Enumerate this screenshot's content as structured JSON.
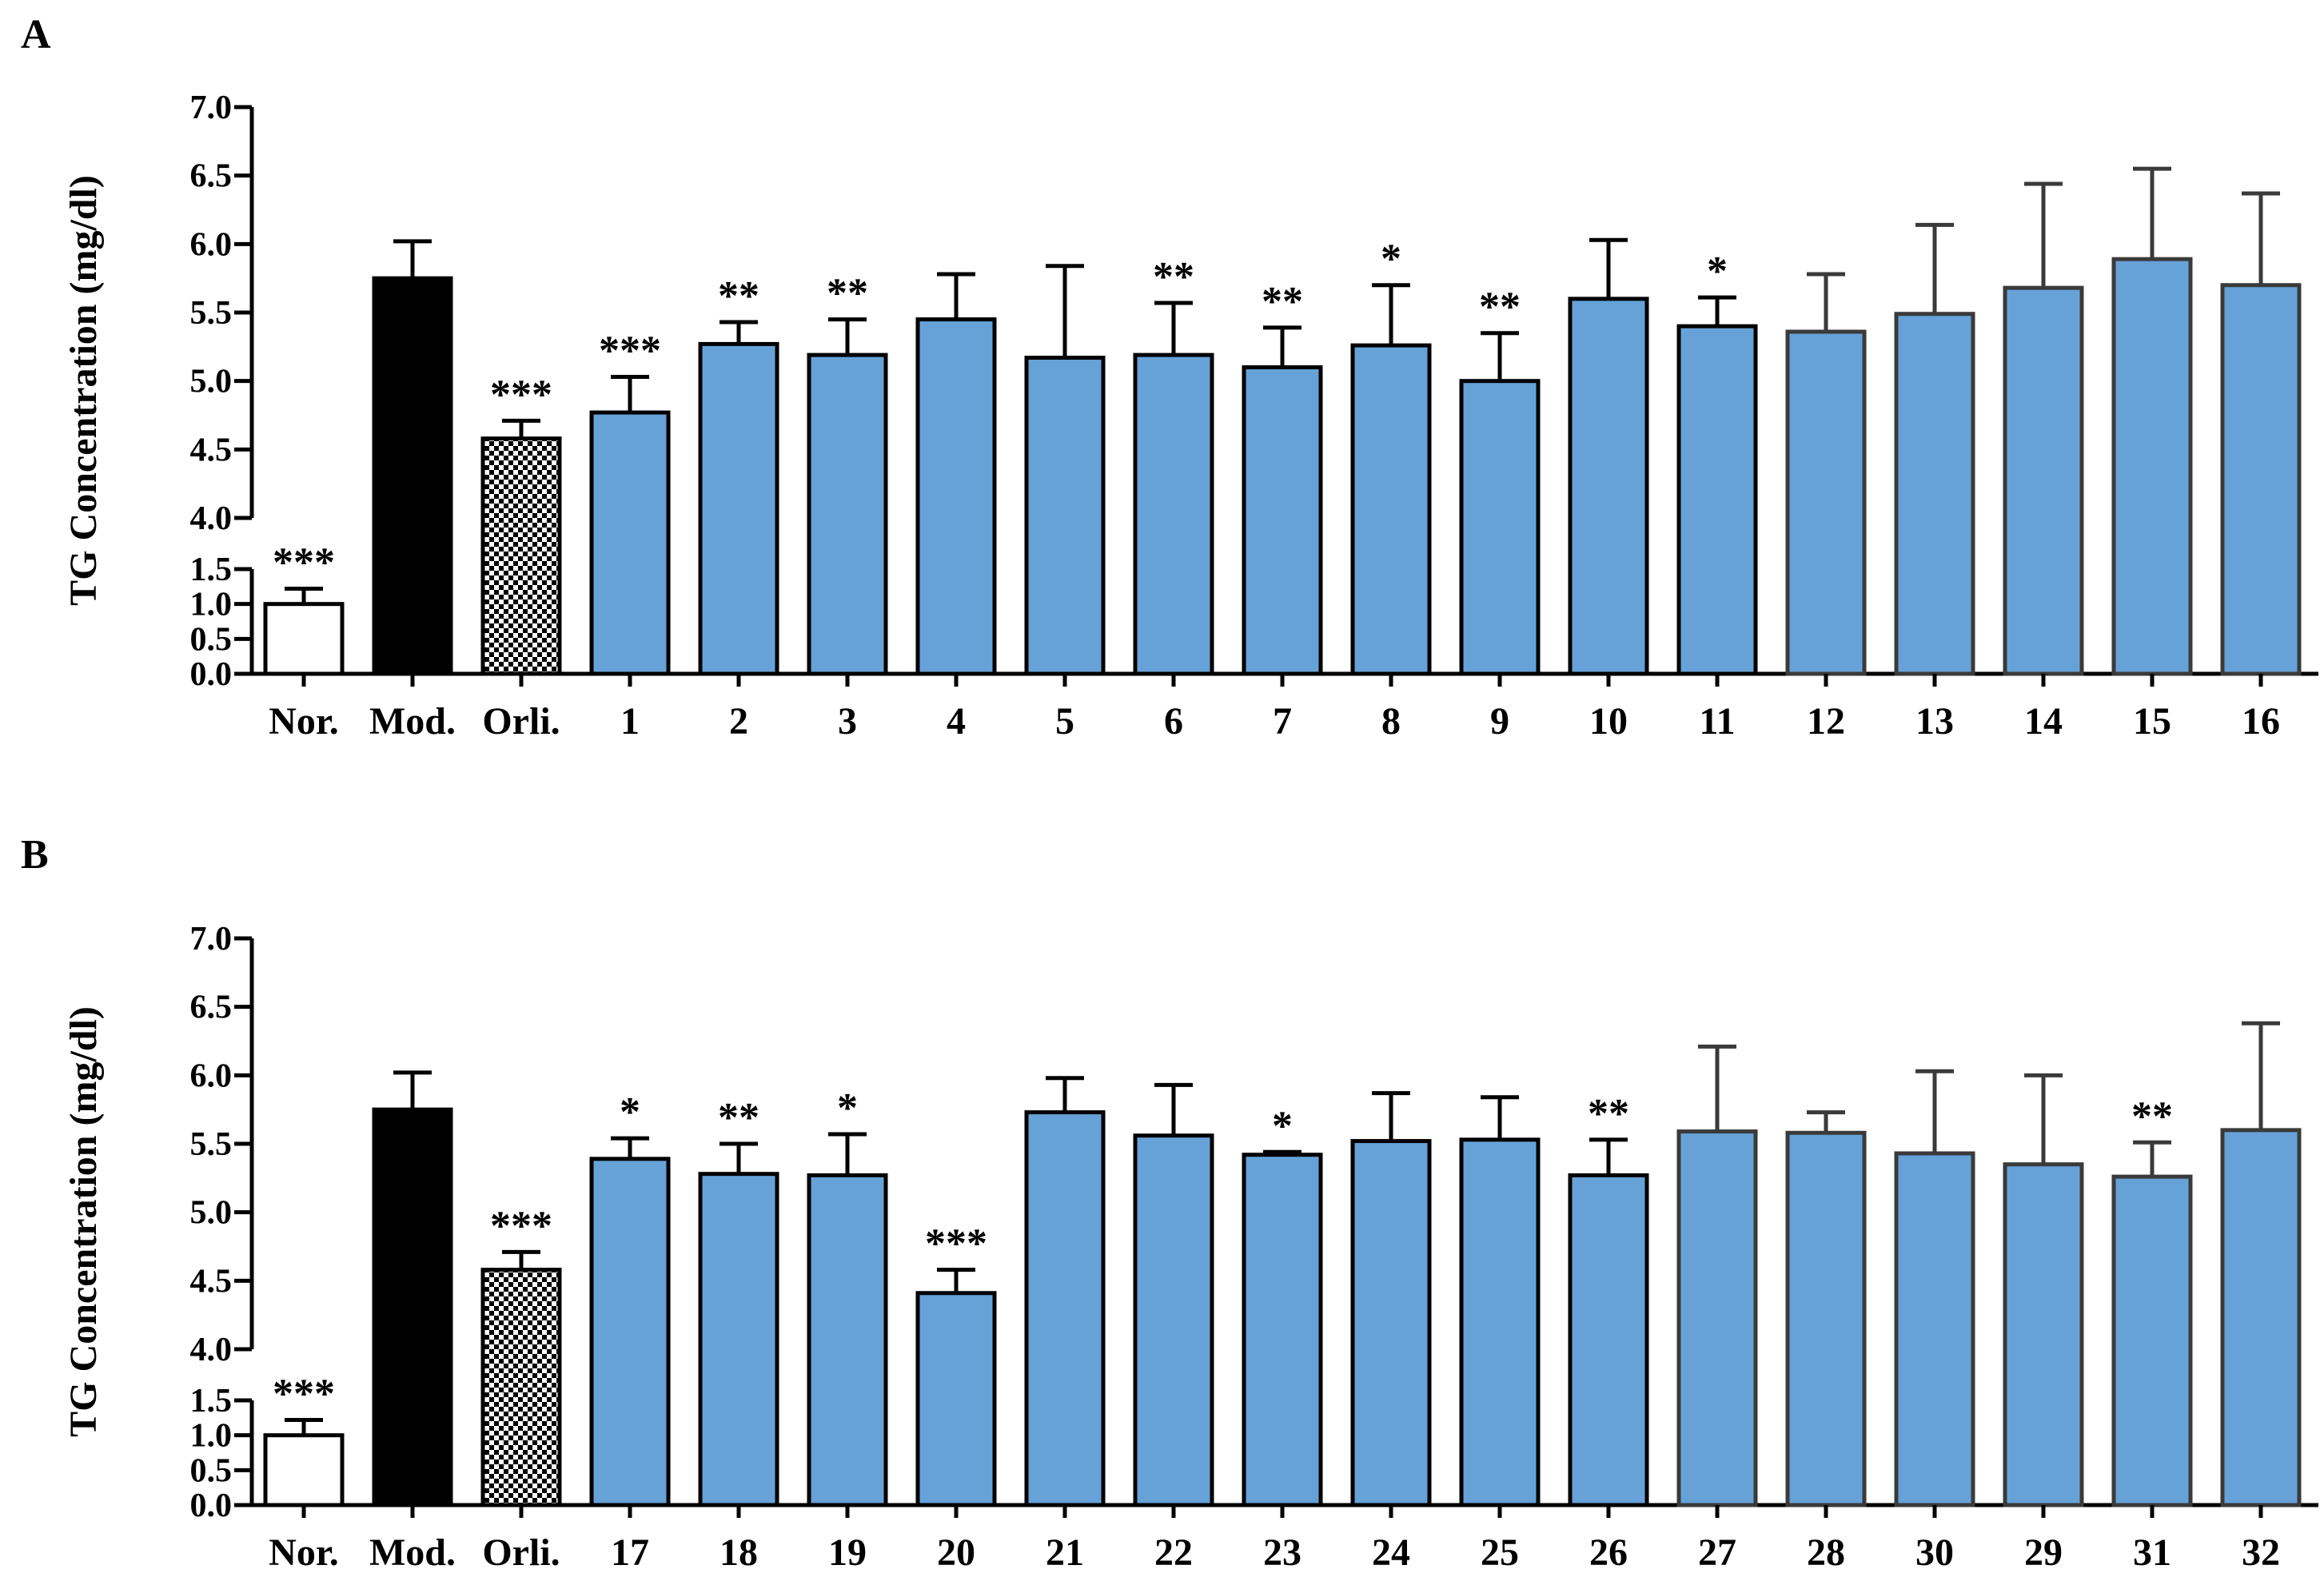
{
  "colors": {
    "normal_fill": "#ffffff",
    "model_fill": "#000000",
    "orlistat_fill": "checker",
    "compound_fill": "#66a2d8",
    "outline": "#000000",
    "faded_outline": "#3a3a3a"
  },
  "chart_data": [
    {
      "panel": "A",
      "type": "bar",
      "ylabel": "TG Concentration (mg/dl)",
      "axis_break": {
        "lower_range": [
          0.0,
          1.5
        ],
        "upper_range": [
          4.0,
          7.0
        ]
      },
      "lower_ticks": [
        "0.0",
        "0.5",
        "1.0",
        "1.5"
      ],
      "upper_ticks": [
        "4.0",
        "4.5",
        "5.0",
        "5.5",
        "6.0",
        "6.5",
        "7.0"
      ],
      "categories": [
        "Nor.",
        "Mod.",
        "Orli.",
        "1",
        "2",
        "3",
        "4",
        "5",
        "6",
        "7",
        "8",
        "9",
        "10",
        "11",
        "12",
        "13",
        "14",
        "15",
        "16"
      ],
      "values": [
        1.0,
        5.75,
        4.58,
        4.77,
        5.27,
        5.19,
        5.45,
        5.17,
        5.19,
        5.1,
        5.26,
        5.0,
        5.6,
        5.4,
        5.36,
        5.49,
        5.68,
        5.89,
        5.7
      ],
      "errors": [
        0.22,
        0.27,
        0.13,
        0.26,
        0.16,
        0.26,
        0.33,
        0.67,
        0.38,
        0.29,
        0.44,
        0.35,
        0.43,
        0.21,
        0.42,
        0.65,
        0.76,
        0.66,
        0.67
      ],
      "significance": [
        "***",
        "",
        "***",
        "***",
        "**",
        "**",
        "",
        "",
        "**",
        "**",
        "*",
        "**",
        "",
        "*",
        "",
        "",
        "",
        "",
        ""
      ],
      "fills": [
        "normal",
        "model",
        "orlistat",
        "compound",
        "compound",
        "compound",
        "compound",
        "compound",
        "compound",
        "compound",
        "compound",
        "compound",
        "compound",
        "compound",
        "compound",
        "compound",
        "compound",
        "compound",
        "compound"
      ],
      "outline_style": [
        "dark",
        "dark",
        "dark",
        "dark",
        "dark",
        "dark",
        "dark",
        "dark",
        "dark",
        "dark",
        "dark",
        "dark",
        "dark",
        "dark",
        "faded",
        "faded",
        "faded",
        "faded",
        "faded"
      ]
    },
    {
      "panel": "B",
      "type": "bar",
      "ylabel": "TG Concentration (mg/dl)",
      "axis_break": {
        "lower_range": [
          0.0,
          1.5
        ],
        "upper_range": [
          4.0,
          7.0
        ]
      },
      "lower_ticks": [
        "0.0",
        "0.5",
        "1.0",
        "1.5"
      ],
      "upper_ticks": [
        "4.0",
        "4.5",
        "5.0",
        "5.5",
        "6.0",
        "6.5",
        "7.0"
      ],
      "categories": [
        "Nor.",
        "Mod.",
        "Orli.",
        "17",
        "18",
        "19",
        "20",
        "21",
        "22",
        "23",
        "24",
        "25",
        "26",
        "27",
        "28",
        "30",
        "29",
        "31",
        "32"
      ],
      "values": [
        1.0,
        5.75,
        4.58,
        5.39,
        5.28,
        5.27,
        4.41,
        5.73,
        5.56,
        5.42,
        5.52,
        5.53,
        5.27,
        5.59,
        5.58,
        5.43,
        5.35,
        5.26,
        5.6
      ],
      "errors": [
        0.22,
        0.27,
        0.13,
        0.15,
        0.22,
        0.3,
        0.17,
        0.25,
        0.37,
        0.02,
        0.35,
        0.31,
        0.26,
        0.62,
        0.15,
        0.6,
        0.65,
        0.25,
        0.78
      ],
      "significance": [
        "***",
        "",
        "***",
        "*",
        "**",
        "*",
        "***",
        "",
        "",
        "*",
        "",
        "",
        "**",
        "",
        "",
        "",
        "",
        "**",
        ""
      ],
      "fills": [
        "normal",
        "model",
        "orlistat",
        "compound",
        "compound",
        "compound",
        "compound",
        "compound",
        "compound",
        "compound",
        "compound",
        "compound",
        "compound",
        "compound",
        "compound",
        "compound",
        "compound",
        "compound",
        "compound"
      ],
      "outline_style": [
        "dark",
        "dark",
        "dark",
        "dark",
        "dark",
        "dark",
        "dark",
        "dark",
        "dark",
        "dark",
        "dark",
        "dark",
        "dark",
        "faded",
        "faded",
        "faded",
        "faded",
        "faded",
        "faded"
      ]
    }
  ]
}
